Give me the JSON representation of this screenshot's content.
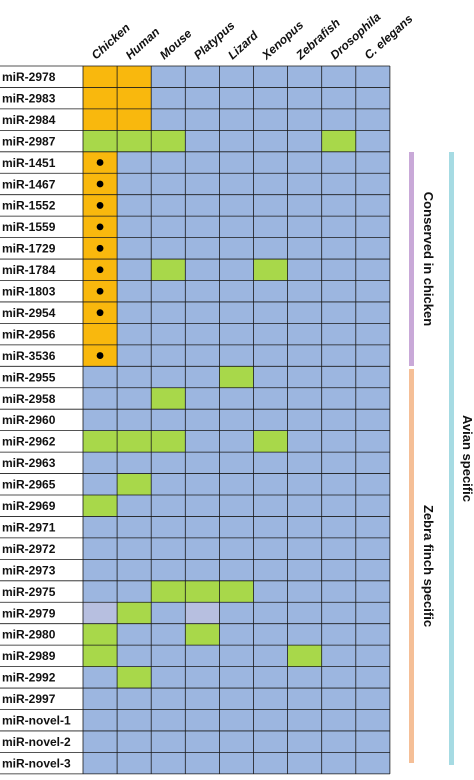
{
  "chart_data": {
    "type": "heatmap",
    "columns": [
      "Chicken",
      "Human",
      "Mouse",
      "Platypus",
      "Lizard",
      "Xenopus",
      "Zebrafish",
      "Drosophila",
      "C. elegans"
    ],
    "rows": [
      {
        "label": "miR-2978",
        "cells": [
          "orange",
          "orange",
          "blue",
          "blue",
          "blue",
          "blue",
          "blue",
          "blue",
          "blue"
        ]
      },
      {
        "label": "miR-2983",
        "cells": [
          "orange",
          "orange",
          "blue",
          "blue",
          "blue",
          "blue",
          "blue",
          "blue",
          "blue"
        ]
      },
      {
        "label": "miR-2984",
        "cells": [
          "orange",
          "orange",
          "blue",
          "blue",
          "blue",
          "blue",
          "blue",
          "blue",
          "blue"
        ]
      },
      {
        "label": "miR-2987",
        "cells": [
          "green",
          "green",
          "green",
          "blue",
          "blue",
          "blue",
          "blue",
          "green",
          "blue"
        ]
      },
      {
        "label": "miR-1451",
        "cells": [
          "orange",
          "blue",
          "blue",
          "blue",
          "blue",
          "blue",
          "blue",
          "blue",
          "blue"
        ],
        "dot": [
          0
        ]
      },
      {
        "label": "miR-1467",
        "cells": [
          "orange",
          "blue",
          "blue",
          "blue",
          "blue",
          "blue",
          "blue",
          "blue",
          "blue"
        ],
        "dot": [
          0
        ]
      },
      {
        "label": "miR-1552",
        "cells": [
          "orange",
          "blue",
          "blue",
          "blue",
          "blue",
          "blue",
          "blue",
          "blue",
          "blue"
        ],
        "dot": [
          0
        ]
      },
      {
        "label": "miR-1559",
        "cells": [
          "orange",
          "blue",
          "blue",
          "blue",
          "blue",
          "blue",
          "blue",
          "blue",
          "blue"
        ],
        "dot": [
          0
        ]
      },
      {
        "label": "miR-1729",
        "cells": [
          "orange",
          "blue",
          "blue",
          "blue",
          "blue",
          "blue",
          "blue",
          "blue",
          "blue"
        ],
        "dot": [
          0
        ]
      },
      {
        "label": "miR-1784",
        "cells": [
          "orange",
          "blue",
          "green",
          "blue",
          "blue",
          "green",
          "blue",
          "blue",
          "blue"
        ],
        "dot": [
          0
        ]
      },
      {
        "label": "miR-1803",
        "cells": [
          "orange",
          "blue",
          "blue",
          "blue",
          "blue",
          "blue",
          "blue",
          "blue",
          "blue"
        ],
        "dot": [
          0
        ]
      },
      {
        "label": "miR-2954",
        "cells": [
          "orange",
          "blue",
          "blue",
          "blue",
          "blue",
          "blue",
          "blue",
          "blue",
          "blue"
        ],
        "dot": [
          0
        ]
      },
      {
        "label": "miR-2956",
        "cells": [
          "orange",
          "blue",
          "blue",
          "blue",
          "blue",
          "blue",
          "blue",
          "blue",
          "blue"
        ]
      },
      {
        "label": "miR-3536",
        "cells": [
          "orange",
          "blue",
          "blue",
          "blue",
          "blue",
          "blue",
          "blue",
          "blue",
          "blue"
        ],
        "dot": [
          0
        ]
      },
      {
        "label": "miR-2955",
        "cells": [
          "blue",
          "blue",
          "blue",
          "blue",
          "green",
          "blue",
          "blue",
          "blue",
          "blue"
        ]
      },
      {
        "label": "miR-2958",
        "cells": [
          "blue",
          "blue",
          "green",
          "blue",
          "blue",
          "blue",
          "blue",
          "blue",
          "blue"
        ]
      },
      {
        "label": "miR-2960",
        "cells": [
          "blue",
          "blue",
          "blue",
          "blue",
          "blue",
          "blue",
          "blue",
          "blue",
          "blue"
        ]
      },
      {
        "label": "miR-2962",
        "cells": [
          "green",
          "green",
          "green",
          "blue",
          "blue",
          "green",
          "blue",
          "blue",
          "blue"
        ]
      },
      {
        "label": "miR-2963",
        "cells": [
          "blue",
          "blue",
          "blue",
          "blue",
          "blue",
          "blue",
          "blue",
          "blue",
          "blue"
        ]
      },
      {
        "label": "miR-2965",
        "cells": [
          "blue",
          "green",
          "blue",
          "blue",
          "blue",
          "blue",
          "blue",
          "blue",
          "blue"
        ]
      },
      {
        "label": "miR-2969",
        "cells": [
          "green",
          "blue",
          "blue",
          "blue",
          "blue",
          "blue",
          "blue",
          "blue",
          "blue"
        ]
      },
      {
        "label": "miR-2971",
        "cells": [
          "blue",
          "blue",
          "blue",
          "blue",
          "blue",
          "blue",
          "blue",
          "blue",
          "blue"
        ]
      },
      {
        "label": "miR-2972",
        "cells": [
          "blue",
          "blue",
          "blue",
          "blue",
          "blue",
          "blue",
          "blue",
          "blue",
          "blue"
        ]
      },
      {
        "label": "miR-2973",
        "cells": [
          "blue",
          "blue",
          "blue",
          "blue",
          "blue",
          "blue",
          "blue",
          "blue",
          "blue"
        ]
      },
      {
        "label": "miR-2975",
        "cells": [
          "blue",
          "blue",
          "green",
          "green",
          "green",
          "blue",
          "blue",
          "blue",
          "blue"
        ]
      },
      {
        "label": "miR-2979",
        "cells": [
          "lavender",
          "green",
          "blue",
          "lavender",
          "blue",
          "blue",
          "blue",
          "blue",
          "blue"
        ]
      },
      {
        "label": "miR-2980",
        "cells": [
          "green",
          "blue",
          "blue",
          "green",
          "blue",
          "blue",
          "blue",
          "blue",
          "blue"
        ]
      },
      {
        "label": "miR-2989",
        "cells": [
          "green",
          "blue",
          "blue",
          "blue",
          "blue",
          "blue",
          "green",
          "blue",
          "blue"
        ]
      },
      {
        "label": "miR-2992",
        "cells": [
          "blue",
          "green",
          "blue",
          "blue",
          "blue",
          "blue",
          "blue",
          "blue",
          "blue"
        ]
      },
      {
        "label": "miR-2997",
        "cells": [
          "blue",
          "blue",
          "blue",
          "blue",
          "blue",
          "blue",
          "blue",
          "blue",
          "blue"
        ]
      },
      {
        "label": "miR-novel-1",
        "cells": [
          "blue",
          "blue",
          "blue",
          "blue",
          "blue",
          "blue",
          "blue",
          "blue",
          "blue"
        ]
      },
      {
        "label": "miR-novel-2",
        "cells": [
          "blue",
          "blue",
          "blue",
          "blue",
          "blue",
          "blue",
          "blue",
          "blue",
          "blue"
        ]
      },
      {
        "label": "miR-novel-3",
        "cells": [
          "blue",
          "blue",
          "blue",
          "blue",
          "blue",
          "blue",
          "blue",
          "blue",
          "blue"
        ]
      }
    ],
    "groups": [
      {
        "label": "Conserved in chicken",
        "start_row": 0,
        "end_row": 13,
        "color": "#c9a9d8"
      },
      {
        "label": "Zebra finch specific",
        "start_row": 14,
        "end_row": 32,
        "color": "#f5bf97"
      },
      {
        "label": "Avian specific",
        "start_row": 0,
        "end_row": 32,
        "color": "#a6dbe3"
      }
    ],
    "colors": {
      "blue": "#9cb6e0",
      "orange": "#f9b80d",
      "green": "#a8d84a",
      "lavender": "#b7bfe0",
      "grid": "#1a1a1a",
      "dot": "#000000"
    }
  }
}
